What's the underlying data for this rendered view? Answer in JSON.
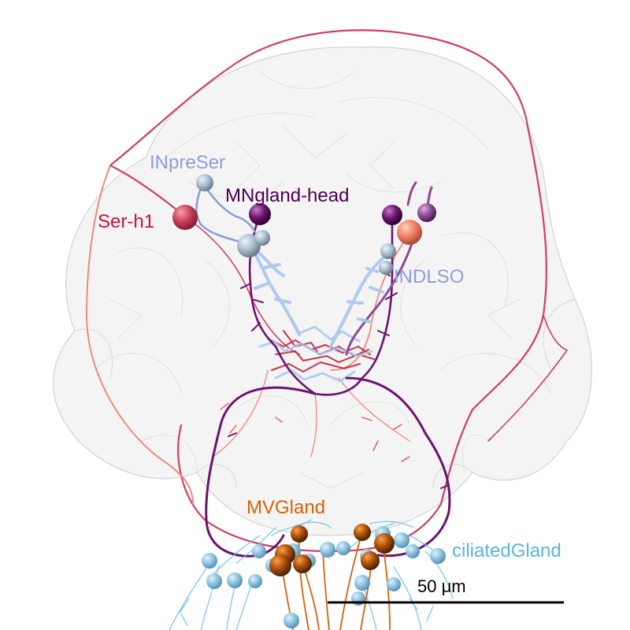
{
  "labels": {
    "inpreser": "INpreSer",
    "mngland_head": "MNgland-head",
    "ser_h1": "Ser-h1",
    "indlso": "INDLSO",
    "mvgland": "MVGland",
    "ciliated_gland": "ciliatedGland"
  },
  "scale_bar": {
    "label": "50 μm"
  },
  "colors": {
    "inpreser": "#8c9fd6",
    "mngland_head": "#4b0050",
    "ser_h1": "#c0143c",
    "indlso": "#8c9fd6",
    "mvgland": "#d4620a",
    "ciliated_gland": "#5ab4e0",
    "body_outline": "#dddddd"
  }
}
